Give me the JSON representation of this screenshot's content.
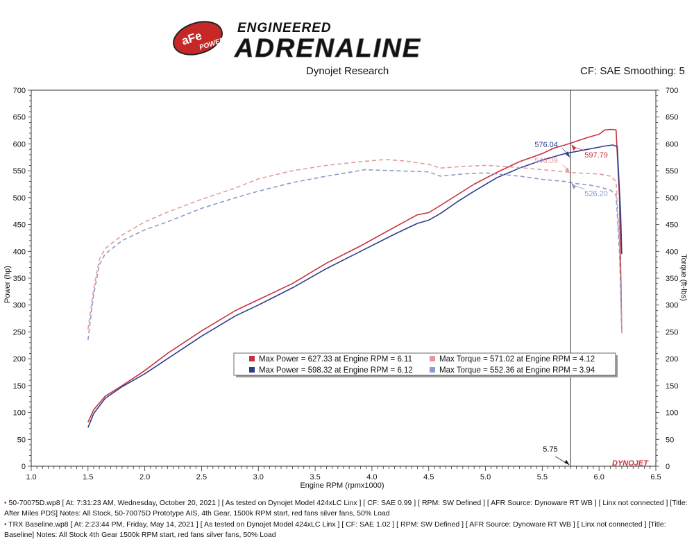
{
  "header": {
    "brand_logo_text": "aFe POWER",
    "brand_line1": "ENGINEERED",
    "brand_line2": "ADRENALINE",
    "center_title": "Dynojet Research",
    "right_info": "CF: SAE Smoothing: 5"
  },
  "chart_data": {
    "type": "line",
    "xlabel": "Engine RPM (rpmx1000)",
    "ylabel_left": "Power (hp)",
    "ylabel_right": "Torque (ft-lbs)",
    "xlim": [
      1.0,
      6.5
    ],
    "ylim_left": [
      0,
      700
    ],
    "ylim_right": [
      0,
      700
    ],
    "x_ticks": [
      "1.0",
      "1.5",
      "2.0",
      "2.5",
      "3.0",
      "3.5",
      "4.0",
      "4.5",
      "5.0",
      "5.5",
      "6.0",
      "6.5"
    ],
    "y_ticks": [
      "0",
      "50",
      "100",
      "150",
      "200",
      "250",
      "300",
      "350",
      "400",
      "450",
      "500",
      "550",
      "600",
      "650",
      "700"
    ],
    "grid": true,
    "cursor": {
      "x": 5.75,
      "label": "5.75"
    },
    "watermark": "DYNOJET",
    "colors": {
      "red": "#c8323c",
      "blue": "#2a3f8a",
      "lightred": "#e39a9e",
      "lightblue": "#8e9ac8"
    },
    "series": [
      {
        "name": "Max Power = 627.33 at Engine RPM = 6.11",
        "color": "#c8323c",
        "style": "solid",
        "x": [
          1.5,
          1.55,
          1.65,
          1.8,
          2.0,
          2.2,
          2.5,
          2.8,
          3.0,
          3.3,
          3.6,
          3.9,
          4.2,
          4.4,
          4.5,
          4.6,
          4.75,
          4.9,
          5.1,
          5.3,
          5.5,
          5.6,
          5.7,
          5.8,
          5.9,
          6.0,
          6.05,
          6.11,
          6.15,
          6.18,
          6.2
        ],
        "y": [
          82,
          105,
          130,
          150,
          178,
          210,
          252,
          290,
          310,
          340,
          378,
          410,
          445,
          468,
          472,
          485,
          505,
          525,
          547,
          567,
          582,
          592,
          598,
          605,
          612,
          618,
          626,
          627,
          626,
          500,
          250
        ]
      },
      {
        "name": "Max Power = 598.32 at Engine RPM = 6.12",
        "color": "#2a3f8a",
        "style": "solid",
        "x": [
          1.5,
          1.55,
          1.65,
          1.8,
          2.0,
          2.2,
          2.5,
          2.8,
          3.0,
          3.3,
          3.6,
          3.9,
          4.2,
          4.4,
          4.5,
          4.6,
          4.75,
          4.9,
          5.1,
          5.3,
          5.5,
          5.6,
          5.7,
          5.8,
          5.9,
          6.0,
          6.05,
          6.12,
          6.16,
          6.19,
          6.2
        ],
        "y": [
          72,
          98,
          126,
          148,
          172,
          200,
          242,
          280,
          300,
          332,
          368,
          400,
          432,
          452,
          458,
          470,
          492,
          512,
          537,
          555,
          570,
          576,
          582,
          586,
          590,
          594,
          596,
          598,
          595,
          470,
          395
        ]
      },
      {
        "name": "Max Torque = 571.02 at Engine RPM = 4.12",
        "color": "#e39a9e",
        "style": "dashed",
        "x": [
          1.5,
          1.55,
          1.6,
          1.65,
          1.8,
          2.0,
          2.2,
          2.5,
          2.8,
          3.0,
          3.3,
          3.6,
          3.9,
          4.12,
          4.3,
          4.5,
          4.6,
          4.8,
          5.0,
          5.3,
          5.5,
          5.7,
          5.8,
          5.9,
          6.0,
          6.1,
          6.15,
          6.18,
          6.2
        ],
        "y": [
          255,
          330,
          385,
          405,
          430,
          455,
          473,
          497,
          518,
          535,
          550,
          560,
          567,
          571,
          568,
          562,
          555,
          558,
          560,
          556,
          552,
          548,
          546,
          545,
          544,
          540,
          530,
          420,
          245
        ]
      },
      {
        "name": "Max Torque = 552.36 at Engine RPM = 3.94",
        "color": "#8e9ac8",
        "style": "dashed",
        "x": [
          1.5,
          1.55,
          1.6,
          1.65,
          1.8,
          2.0,
          2.2,
          2.5,
          2.8,
          3.0,
          3.3,
          3.6,
          3.94,
          4.2,
          4.5,
          4.6,
          4.8,
          5.0,
          5.3,
          5.5,
          5.7,
          5.8,
          5.9,
          6.0,
          6.1,
          6.15,
          6.18,
          6.2
        ],
        "y": [
          235,
          320,
          375,
          395,
          420,
          440,
          455,
          480,
          500,
          512,
          528,
          540,
          552,
          550,
          548,
          540,
          544,
          546,
          540,
          534,
          530,
          526,
          524,
          520,
          514,
          505,
          400,
          255
        ]
      }
    ],
    "annotations": [
      {
        "text": "576.04",
        "x": 5.75,
        "y": 576.04,
        "color": "#2a3f8a",
        "side": "left"
      },
      {
        "text": "597.79",
        "x": 5.75,
        "y": 597.79,
        "color": "#c8323c",
        "side": "right"
      },
      {
        "text": "546.09",
        "x": 5.75,
        "y": 546.09,
        "color": "#e39a9e",
        "side": "left"
      },
      {
        "text": "526.20",
        "x": 5.75,
        "y": 526.2,
        "color": "#8e9ac8",
        "side": "right"
      }
    ]
  },
  "notes": {
    "run1": "50-70075D.wp8 [ At: 7:31:23 AM, Wednesday, October 20, 2021 ] [ As tested on Dynojet Model 424xLC Linx ] [ CF: SAE 0.99 ] [ RPM: SW Defined ] [ AFR Source: Dynoware RT WB ] [ Linx not connected ] [Title: After Miles PDS] Notes: All Stock, 50-70075D Prototype AIS, 4th Gear, 1500k RPM start, red fans silver fans, 50% Load",
    "run2": "TRX Baseline.wp8 [ At: 2:23:44 PM, Friday, May 14, 2021 ] [ As tested on Dynojet Model 424xLC Linx ] [ CF: SAE 1.02 ] [ RPM: SW Defined ] [ AFR Source: Dynoware RT WB ] [ Linx not connected ] [Title: Baseline] Notes: All Stock 4th Gear 1500k RPM start, red fans silver fans, 50% Load"
  }
}
